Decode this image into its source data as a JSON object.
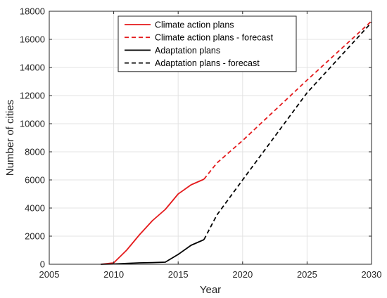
{
  "chart_data": {
    "type": "line",
    "title": "",
    "xlabel": "Year",
    "ylabel": "Number of cities",
    "xlim": [
      2005,
      2030
    ],
    "ylim": [
      0,
      18000
    ],
    "xticks": [
      2005,
      2010,
      2015,
      2020,
      2025,
      2030
    ],
    "yticks": [
      0,
      2000,
      4000,
      6000,
      8000,
      10000,
      12000,
      14000,
      16000,
      18000
    ],
    "grid": true,
    "legend_position": "top-center",
    "series": [
      {
        "name": "Climate action plans",
        "color": "#e41a1c",
        "style": "solid",
        "x": [
          2009,
          2010,
          2011,
          2012,
          2013,
          2014,
          2015,
          2016,
          2017
        ],
        "y": [
          0,
          100,
          1000,
          2100,
          3100,
          3900,
          5000,
          5650,
          6050
        ]
      },
      {
        "name": "Climate action plans - forecast",
        "color": "#e41a1c",
        "style": "dashed",
        "x": [
          2017,
          2018,
          2020,
          2025,
          2030
        ],
        "y": [
          6050,
          7200,
          8800,
          13100,
          17300
        ]
      },
      {
        "name": "Adaptation plans",
        "color": "#000000",
        "style": "solid",
        "x": [
          2009,
          2010,
          2011,
          2012,
          2013,
          2014,
          2015,
          2016,
          2017
        ],
        "y": [
          0,
          20,
          60,
          100,
          120,
          150,
          700,
          1350,
          1750
        ]
      },
      {
        "name": "Adaptation plans - forecast",
        "color": "#000000",
        "style": "dashed",
        "x": [
          2017,
          2018,
          2020,
          2025,
          2030
        ],
        "y": [
          1750,
          3500,
          6000,
          12200,
          17200
        ]
      }
    ]
  }
}
